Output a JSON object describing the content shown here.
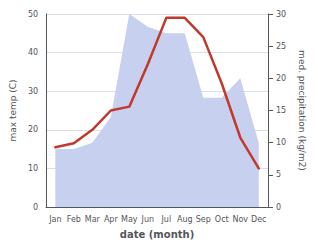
{
  "chart_data": {
    "type": "line",
    "categories": [
      "Jan",
      "Feb",
      "Mar",
      "Apr",
      "May",
      "Jun",
      "Jul",
      "Aug",
      "Sep",
      "Oct",
      "Nov",
      "Dec"
    ],
    "series": [
      {
        "type": "area",
        "color": "#c8d0f0",
        "axis": "y2",
        "values": [
          9,
          9,
          10,
          14,
          30,
          28,
          27,
          27,
          17,
          17,
          20,
          10
        ]
      },
      {
        "type": "line",
        "color": "#c0392b",
        "values": [
          15.5,
          16.5,
          20,
          25,
          26,
          37,
          49,
          49,
          44,
          32,
          18,
          10
        ]
      }
    ],
    "xlabel": "date (month)",
    "ylabel": "max temp (C)",
    "y2label": "med. precipitation (kg/m2)",
    "ylim": [
      0,
      50
    ],
    "yticks": [
      0,
      10,
      20,
      30,
      40,
      50
    ],
    "y2lim": [
      0,
      30
    ],
    "y2ticks": [
      0,
      5,
      10,
      15,
      20,
      25,
      30
    ],
    "grid": true
  }
}
